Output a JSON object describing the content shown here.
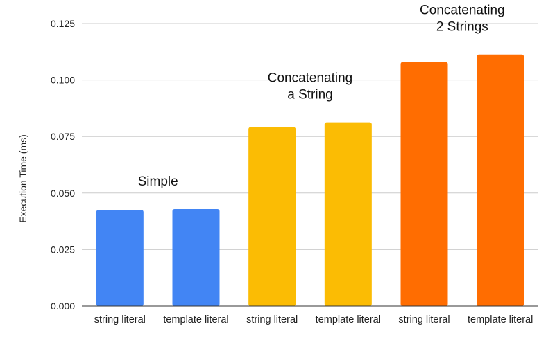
{
  "chart_data": {
    "type": "bar",
    "title": "",
    "xlabel": "",
    "ylabel": "Execution Time (ms)",
    "ylim": [
      0,
      0.125
    ],
    "yticks": [
      "0.000",
      "0.025",
      "0.050",
      "0.075",
      "0.100",
      "0.125"
    ],
    "categories": [
      "string literal",
      "template literal",
      "string literal",
      "template literal",
      "string literal",
      "template literal"
    ],
    "values": [
      0.0425,
      0.0429,
      0.0792,
      0.0813,
      0.108,
      0.1113
    ],
    "colors": [
      "#4285f4",
      "#4285f4",
      "#fbbc04",
      "#fbbc04",
      "#ff6d01",
      "#ff6d01"
    ],
    "grid": true,
    "legend": "none",
    "annotations": [
      {
        "lines": [
          "Simple"
        ],
        "bars": [
          0,
          1
        ]
      },
      {
        "lines": [
          "Concatenating",
          "a String"
        ],
        "bars": [
          2,
          3
        ]
      },
      {
        "lines": [
          "Concatenating",
          "2 Strings"
        ],
        "bars": [
          4,
          5
        ]
      }
    ]
  }
}
